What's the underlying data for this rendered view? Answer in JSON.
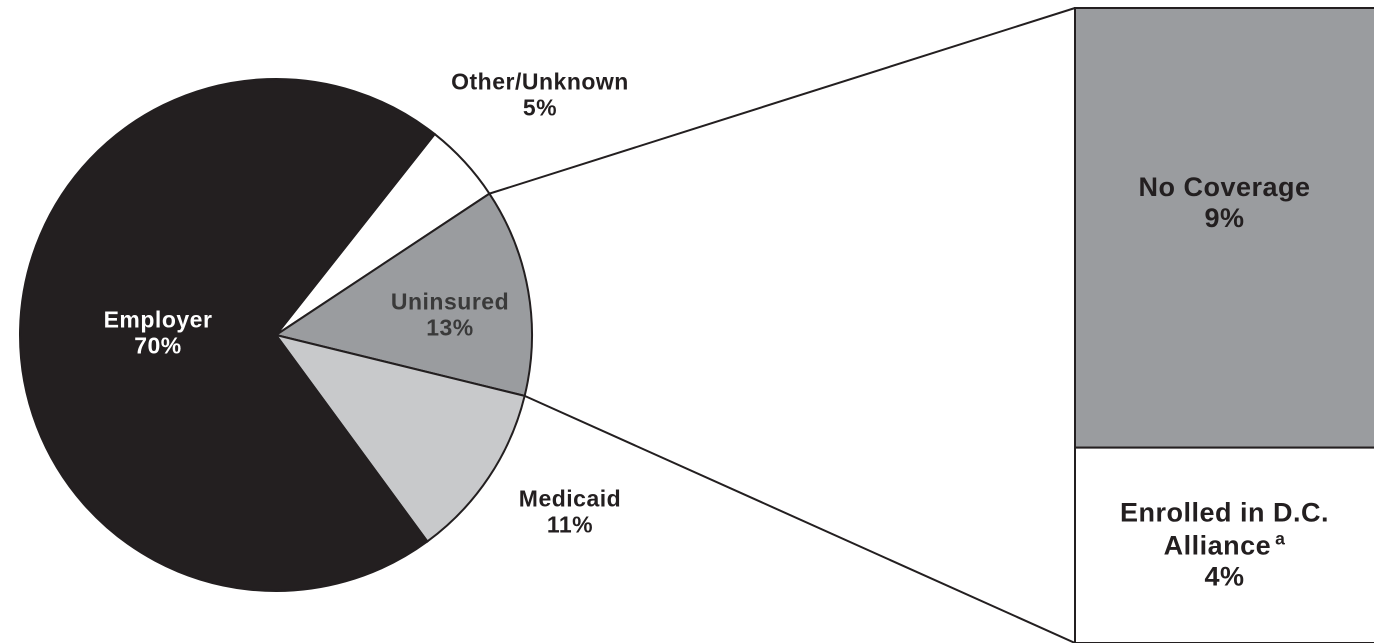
{
  "chart_data": {
    "type": "pie",
    "categories": [
      "Other/Unknown",
      "Uninsured",
      "Medicaid",
      "Employer"
    ],
    "values": [
      5,
      13,
      11,
      70
    ],
    "value_labels": [
      "5%",
      "13%",
      "11%",
      "70%"
    ],
    "colors": [
      "#ffffff",
      "#9a9c9f",
      "#c8c9cb",
      "#231f20"
    ],
    "breakdown": {
      "type": "stacked-bar",
      "of": "Uninsured",
      "categories": [
        "No Coverage",
        "Enrolled in D.C. Alliance"
      ],
      "values": [
        9,
        4
      ],
      "value_labels": [
        "9%",
        "4%"
      ],
      "colors": [
        "#9a9c9f",
        "#ffffff"
      ],
      "footnote_mark": {
        "category": "Enrolled in D.C. Alliance",
        "mark": "a"
      }
    }
  }
}
